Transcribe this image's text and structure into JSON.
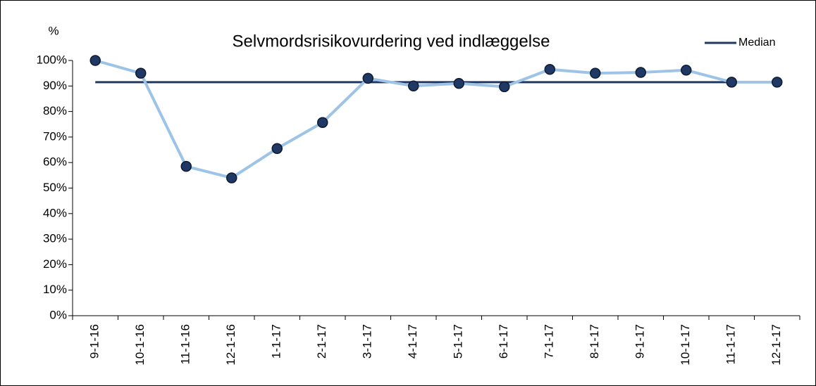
{
  "chart_data": {
    "type": "line",
    "title": "Selvmordsrisikovurdering ved indlæggelse",
    "ylabel": "%",
    "categories": [
      "9-1-16",
      "10-1-16",
      "11-1-16",
      "12-1-16",
      "1-1-17",
      "2-1-17",
      "3-1-17",
      "4-1-17",
      "5-1-17",
      "6-1-17",
      "7-1-17",
      "8-1-17",
      "9-1-17",
      "10-1-17",
      "11-1-17",
      "12-1-17"
    ],
    "values": [
      100,
      95,
      58.5,
      54,
      65.5,
      75.7,
      93,
      90,
      91,
      89.7,
      96.5,
      95,
      95.3,
      96.2,
      91.5,
      91.5
    ],
    "color": "#9dc3e6",
    "marker_color": "#1f3864",
    "median": {
      "name": "Median",
      "value": 91.5,
      "color": "#1f3864"
    },
    "ylim": [
      0,
      100
    ],
    "yticks": [
      {
        "value": 0,
        "label": "0%"
      },
      {
        "value": 10,
        "label": "10%"
      },
      {
        "value": 20,
        "label": "20%"
      },
      {
        "value": 30,
        "label": "30%"
      },
      {
        "value": 40,
        "label": "40%"
      },
      {
        "value": 50,
        "label": "50%"
      },
      {
        "value": 60,
        "label": "60%"
      },
      {
        "value": 70,
        "label": "70%"
      },
      {
        "value": 80,
        "label": "80%"
      },
      {
        "value": 90,
        "label": "90%"
      },
      {
        "value": 100,
        "label": "100%"
      }
    ],
    "legend_position": "upper right"
  }
}
